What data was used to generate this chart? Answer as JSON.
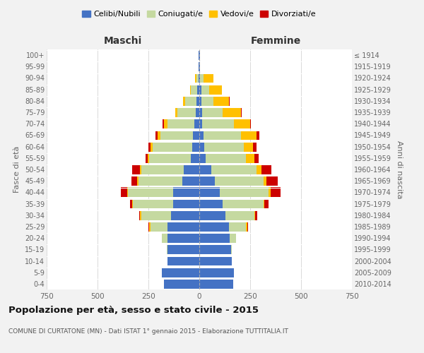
{
  "age_groups": [
    "0-4",
    "5-9",
    "10-14",
    "15-19",
    "20-24",
    "25-29",
    "30-34",
    "35-39",
    "40-44",
    "45-49",
    "50-54",
    "55-59",
    "60-64",
    "65-69",
    "70-74",
    "75-79",
    "80-84",
    "85-89",
    "90-94",
    "95-99",
    "100+"
  ],
  "birth_years": [
    "2010-2014",
    "2005-2009",
    "2000-2004",
    "1995-1999",
    "1990-1994",
    "1985-1989",
    "1980-1984",
    "1975-1979",
    "1970-1974",
    "1965-1969",
    "1960-1964",
    "1955-1959",
    "1950-1954",
    "1945-1949",
    "1940-1944",
    "1935-1939",
    "1930-1934",
    "1925-1929",
    "1920-1924",
    "1915-1919",
    "≤ 1914"
  ],
  "maschi": {
    "celibi": [
      175,
      185,
      155,
      155,
      155,
      155,
      140,
      130,
      130,
      85,
      75,
      40,
      35,
      30,
      25,
      18,
      15,
      10,
      5,
      2,
      2
    ],
    "coniugati": [
      0,
      0,
      0,
      5,
      30,
      85,
      145,
      195,
      220,
      215,
      210,
      205,
      195,
      160,
      130,
      90,
      55,
      30,
      10,
      0,
      0
    ],
    "vedovi": [
      0,
      0,
      0,
      0,
      0,
      5,
      5,
      5,
      5,
      5,
      5,
      10,
      10,
      15,
      20,
      10,
      10,
      5,
      5,
      0,
      0
    ],
    "divorziati": [
      0,
      0,
      0,
      0,
      0,
      5,
      5,
      10,
      30,
      30,
      40,
      10,
      10,
      10,
      5,
      0,
      0,
      0,
      0,
      0,
      0
    ]
  },
  "femmine": {
    "nubili": [
      165,
      170,
      160,
      155,
      150,
      145,
      130,
      115,
      100,
      75,
      60,
      30,
      25,
      20,
      15,
      15,
      10,
      10,
      5,
      2,
      2
    ],
    "coniugate": [
      0,
      0,
      0,
      5,
      30,
      85,
      140,
      200,
      240,
      240,
      220,
      200,
      195,
      185,
      155,
      100,
      60,
      40,
      15,
      0,
      0
    ],
    "vedove": [
      0,
      0,
      0,
      0,
      0,
      5,
      5,
      5,
      10,
      15,
      25,
      40,
      45,
      75,
      80,
      90,
      75,
      60,
      50,
      2,
      0
    ],
    "divorziate": [
      0,
      0,
      0,
      0,
      0,
      5,
      10,
      20,
      50,
      55,
      50,
      20,
      15,
      15,
      5,
      5,
      5,
      0,
      0,
      0,
      0
    ]
  },
  "colors": {
    "celibi": "#4472c4",
    "coniugati": "#c5d9a0",
    "vedovi": "#ffc000",
    "divorziati": "#cc0000"
  },
  "xlim": 750,
  "title": "Popolazione per età, sesso e stato civile - 2015",
  "subtitle": "COMUNE DI CURTATONE (MN) - Dati ISTAT 1° gennaio 2015 - Elaborazione TUTTITALIA.IT",
  "ylabel_left": "Fasce di età",
  "ylabel_right": "Anni di nascita",
  "xlabel_maschi": "Maschi",
  "xlabel_femmine": "Femmine",
  "bg_color": "#f2f2f2",
  "plot_bg": "#ffffff",
  "legend_labels": [
    "Celibi/Nubili",
    "Coniugati/e",
    "Vedovi/e",
    "Divorziati/e"
  ]
}
